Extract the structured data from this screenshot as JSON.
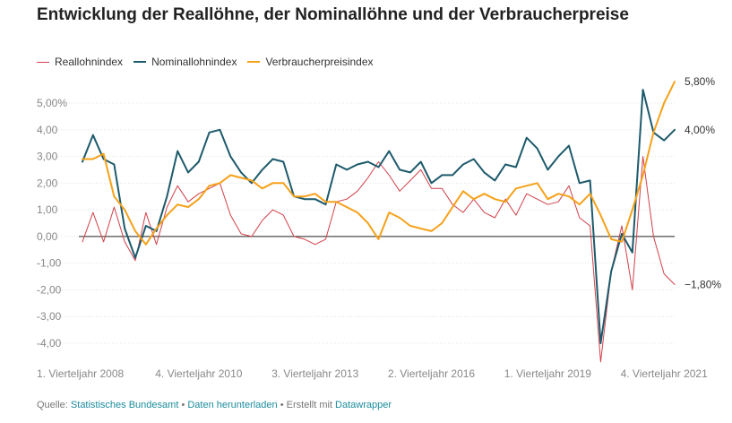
{
  "title": "Entwicklung der Reallöhne, der Nominallöhne und der Verbraucherpreise",
  "legend": [
    {
      "label": "Reallohnindex",
      "color": "#d0404a"
    },
    {
      "label": "Nominallohnindex",
      "color": "#1d5a6b"
    },
    {
      "label": "Verbraucherpreisindex",
      "color": "#f5a11a"
    }
  ],
  "source": {
    "prefix": "Quelle:",
    "source_link": "Statistisches Bundesamt",
    "sep1": "•",
    "download_link": "Daten herunterladen",
    "sep2": "•",
    "created_text": "Erstellt mit",
    "tool_link": "Datawrapper"
  },
  "chart_data": {
    "type": "line",
    "title": "Entwicklung der Reallöhne, der Nominallöhne und der Verbraucherpreise",
    "xlabel": "",
    "ylabel": "",
    "ylim": [
      -4.5,
      5.8
    ],
    "yticks": [
      5,
      4,
      3,
      2,
      1,
      0,
      -1,
      -2,
      -3,
      -4
    ],
    "ytick_labels": [
      "5,00%",
      "4,00",
      "3,00",
      "2,00",
      "1,00",
      "0,00",
      "-1,00",
      "-2,00",
      "-3,00",
      "-4,00"
    ],
    "zero_line": true,
    "grid": true,
    "legend_position": "top-left",
    "x_tick_labels": [
      {
        "label": "1. Vierteljahr 2008",
        "index": 0
      },
      {
        "label": "4. Vierteljahr 2010",
        "index": 11
      },
      {
        "label": "3. Vierteljahr 2013",
        "index": 22
      },
      {
        "label": "2. Vierteljahr 2016",
        "index": 33
      },
      {
        "label": "1. Vierteljahr 2019",
        "index": 44
      },
      {
        "label": "4. Vierteljahr 2021",
        "index": 55
      }
    ],
    "series": [
      {
        "name": "Reallohnindex",
        "color": "#d0404a",
        "stroke_width": 1,
        "end_label": "−1,80%",
        "values": [
          -0.2,
          0.9,
          -0.2,
          1.1,
          -0.2,
          -0.9,
          0.9,
          -0.3,
          1.1,
          1.9,
          1.3,
          1.6,
          1.8,
          2.0,
          0.8,
          0.1,
          0.0,
          0.6,
          1.0,
          0.8,
          0.0,
          -0.1,
          -0.3,
          -0.1,
          1.3,
          1.4,
          1.7,
          2.2,
          2.8,
          2.3,
          1.7,
          2.1,
          2.5,
          1.8,
          1.8,
          1.2,
          0.9,
          1.4,
          0.9,
          0.7,
          1.4,
          0.8,
          1.6,
          1.4,
          1.2,
          1.3,
          1.9,
          0.7,
          0.4,
          -4.7,
          -1.3,
          0.4,
          -2.0,
          3.0,
          0.0,
          -1.4,
          -1.8
        ]
      },
      {
        "name": "Nominallohnindex",
        "color": "#1d5a6b",
        "stroke_width": 2,
        "end_label": "4,00%",
        "values": [
          2.8,
          3.8,
          2.9,
          2.7,
          0.3,
          -0.8,
          0.4,
          0.2,
          1.5,
          3.2,
          2.4,
          2.8,
          3.9,
          4.0,
          3.0,
          2.4,
          2.0,
          2.5,
          2.9,
          2.8,
          1.5,
          1.4,
          1.4,
          1.2,
          2.7,
          2.5,
          2.7,
          2.8,
          2.6,
          3.2,
          2.5,
          2.4,
          2.8,
          2.0,
          2.3,
          2.3,
          2.7,
          2.9,
          2.4,
          2.1,
          2.7,
          2.6,
          3.7,
          3.3,
          2.5,
          3.0,
          3.4,
          2.0,
          2.1,
          -4.0,
          -1.3,
          0.1,
          -0.6,
          5.5,
          3.9,
          3.6,
          4.0
        ]
      },
      {
        "name": "Verbraucherpreisindex",
        "color": "#f5a11a",
        "stroke_width": 2,
        "end_label": "5,80%",
        "values": [
          2.9,
          2.9,
          3.1,
          1.5,
          1.0,
          0.2,
          -0.3,
          0.3,
          0.8,
          1.2,
          1.1,
          1.4,
          1.9,
          2.0,
          2.3,
          2.2,
          2.1,
          1.8,
          2.0,
          2.0,
          1.5,
          1.5,
          1.6,
          1.3,
          1.3,
          1.1,
          0.9,
          0.5,
          -0.1,
          0.9,
          0.7,
          0.4,
          0.3,
          0.2,
          0.5,
          1.1,
          1.7,
          1.4,
          1.6,
          1.4,
          1.3,
          1.8,
          1.9,
          2.0,
          1.4,
          1.6,
          1.5,
          1.2,
          1.6,
          0.8,
          -0.1,
          -0.2,
          1.0,
          2.3,
          3.9,
          5.0,
          5.8
        ]
      }
    ]
  }
}
